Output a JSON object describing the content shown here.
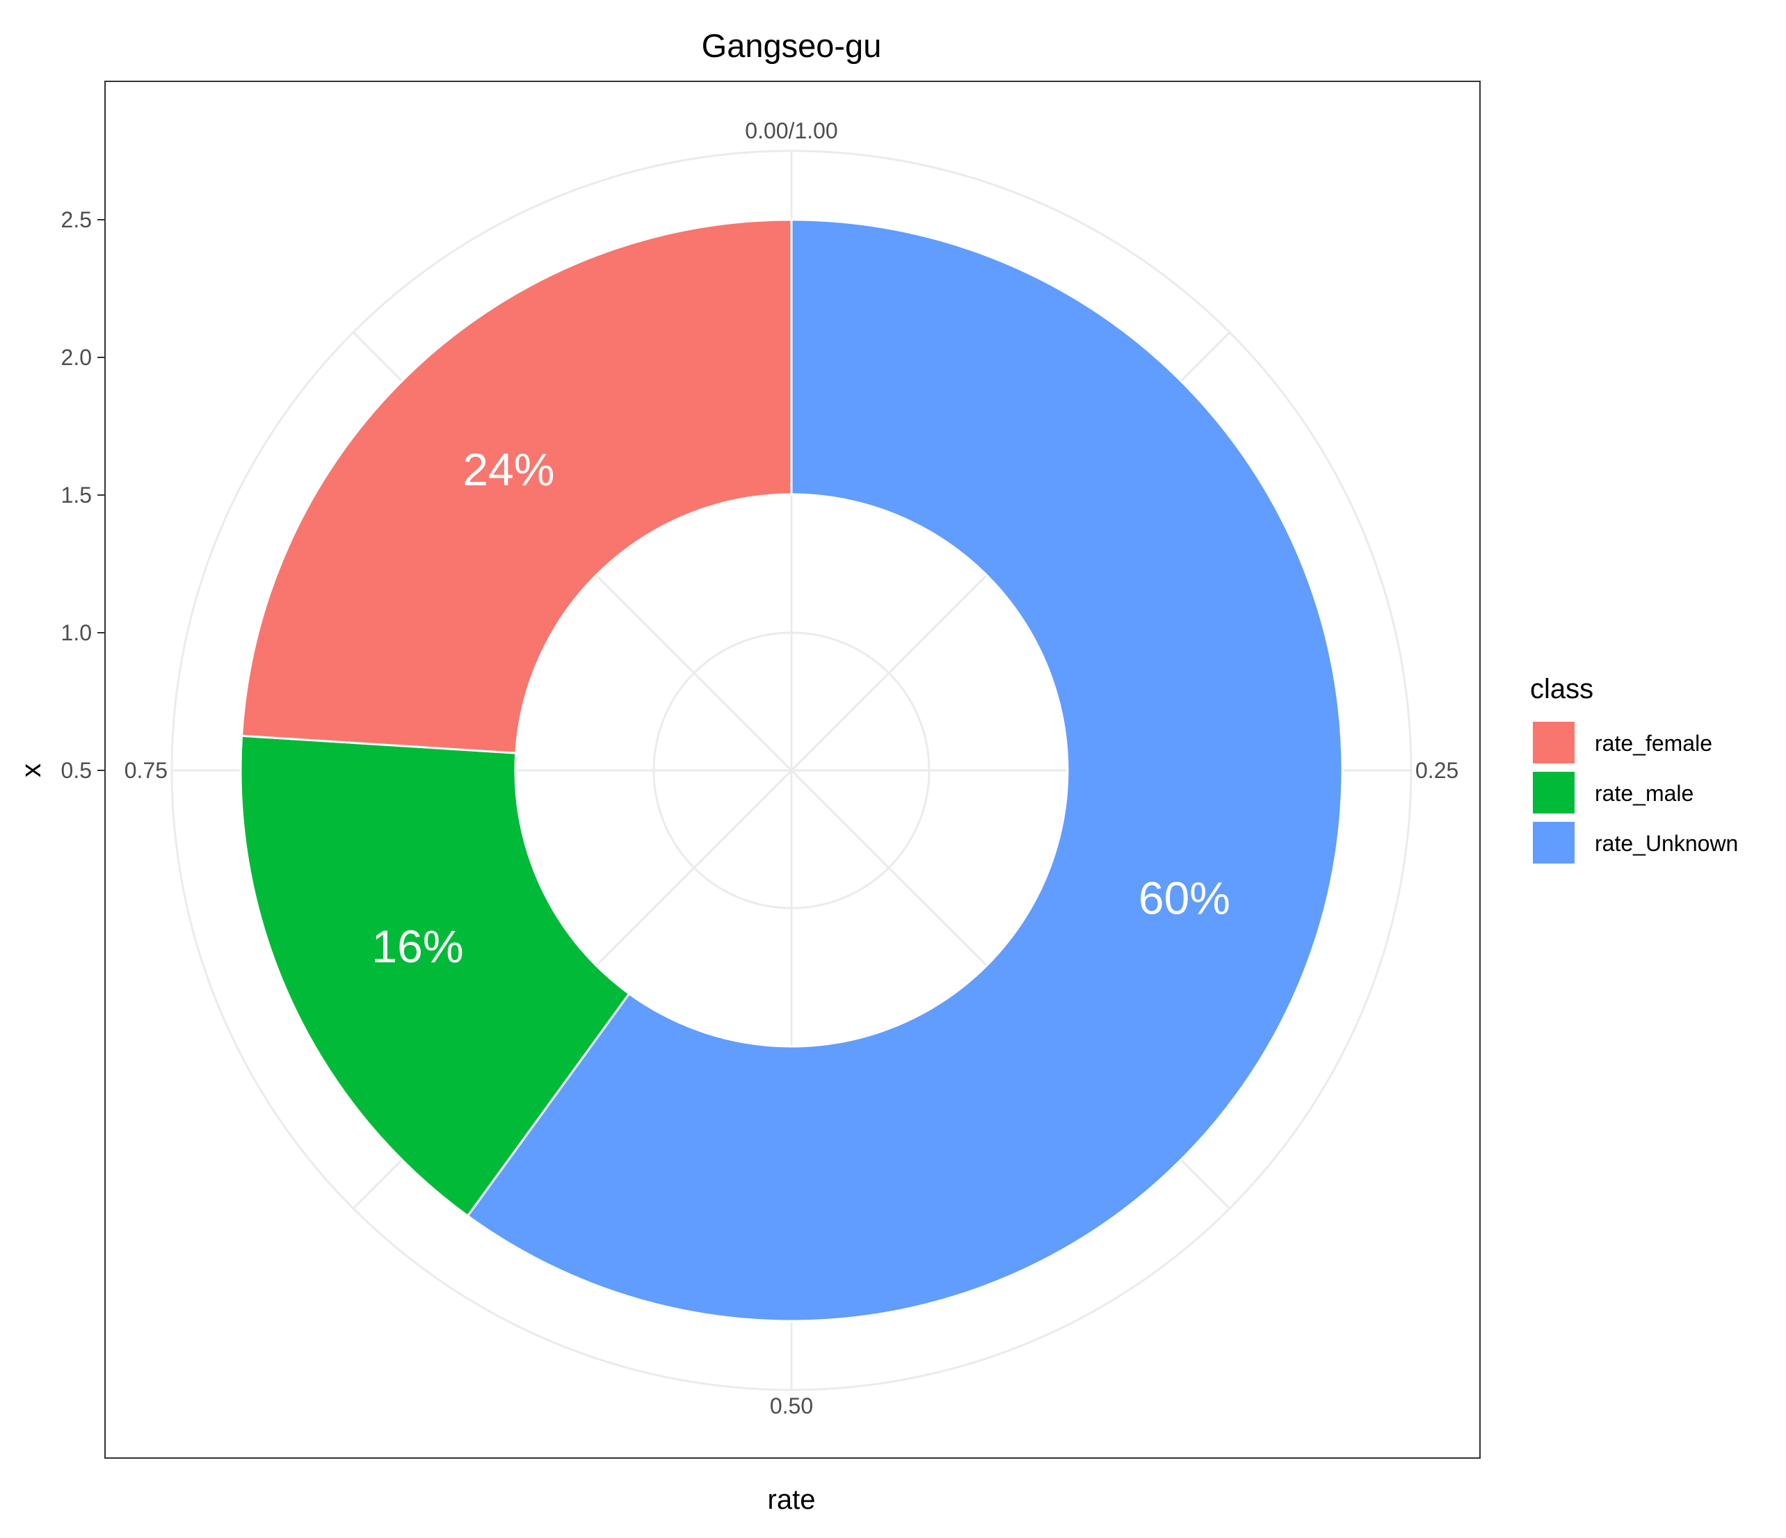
{
  "chart_data": {
    "type": "pie",
    "subtype": "donut",
    "title": "Gangseo-gu",
    "xlabel": "rate",
    "ylabel": "x",
    "y_ticks": [
      "0.5",
      "1.0",
      "1.5",
      "2.0",
      "2.5"
    ],
    "angle_ticks": [
      {
        "value": 0.0,
        "label": "0.00/1.00"
      },
      {
        "value": 0.25,
        "label": "0.25"
      },
      {
        "value": 0.5,
        "label": "0.50"
      },
      {
        "value": 0.75,
        "label": "0.75"
      }
    ],
    "grid": true,
    "legend_position": "right",
    "legend_title": "class",
    "slices": [
      {
        "name": "rate_female",
        "value": 0.24,
        "label": "24%",
        "color": "#F8766D"
      },
      {
        "name": "rate_male",
        "value": 0.16,
        "label": "16%",
        "color": "#00BA38"
      },
      {
        "name": "rate_Unknown",
        "value": 0.6,
        "label": "60%",
        "color": "#619CFF"
      }
    ]
  }
}
